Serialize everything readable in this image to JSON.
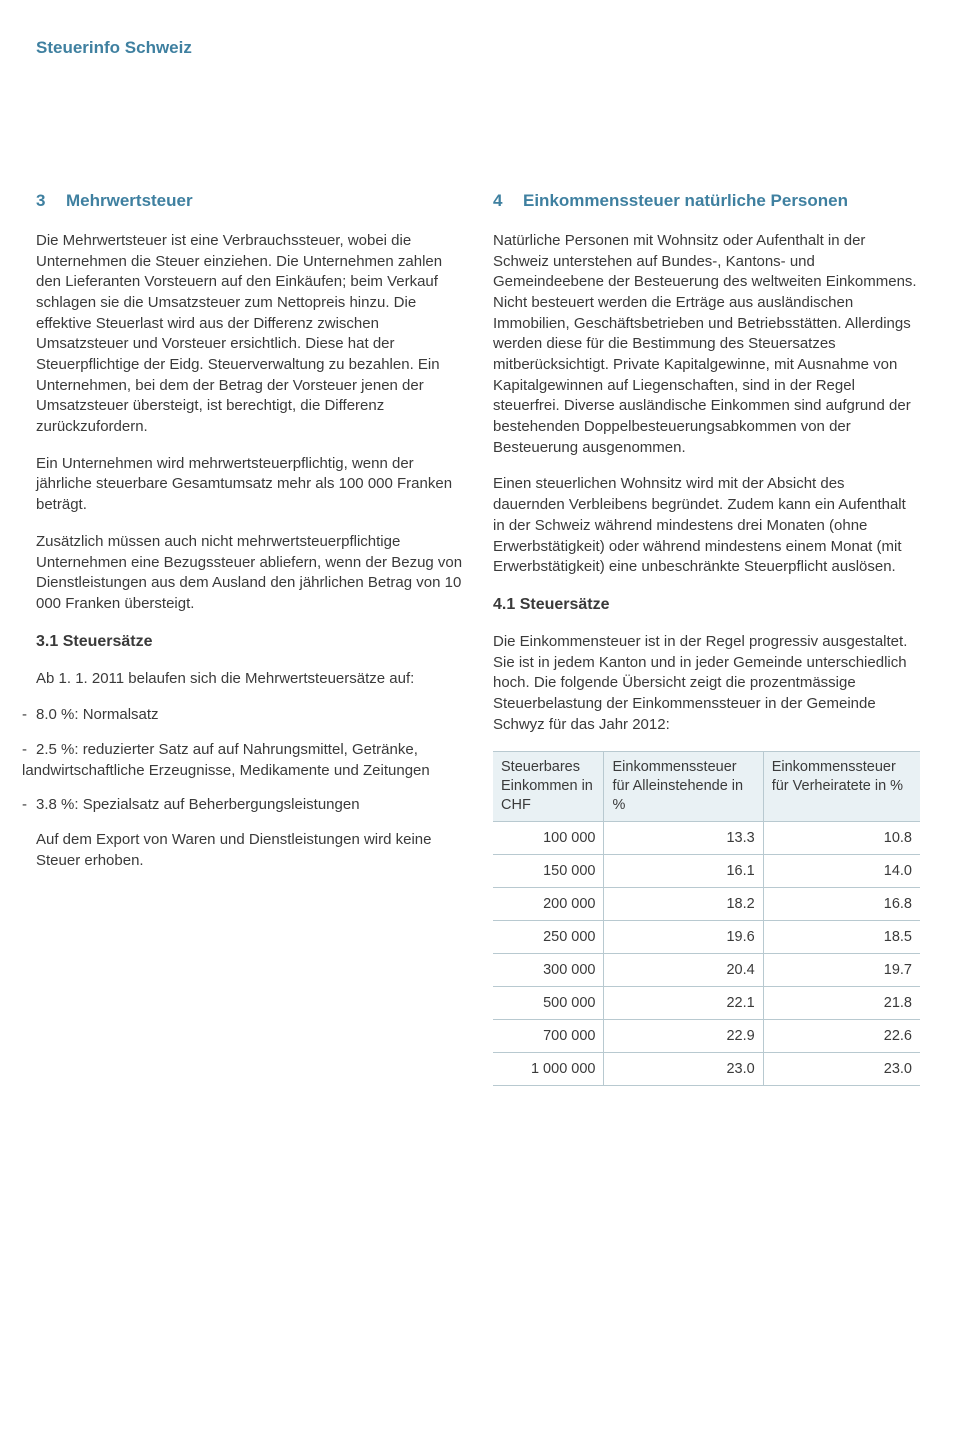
{
  "header": {
    "title": "Steuerinfo Schweiz"
  },
  "left": {
    "section_num": "3",
    "section_title": "Mehrwertsteuer",
    "p1": "Die Mehrwertsteuer ist eine Verbrauchssteuer, wobei die Unternehmen die Steuer einziehen. Die Unternehmen zahlen den Lieferanten Vorsteuern auf den Einkäufen; beim Verkauf schlagen sie die Umsatzsteuer zum Nettopreis hinzu. Die effektive Steuerlast wird aus der Differenz zwischen Umsatzsteuer und Vorsteuer ersichtlich. Diese hat der Steuerpflichtige der Eidg. Steuerverwaltung zu bezahlen. Ein Unternehmen, bei dem der Betrag der Vorsteuer jenen der Umsatzsteuer übersteigt, ist berechtigt, die Differenz zurückzufordern.",
    "p2": "Ein Unternehmen wird mehrwertsteuerpflichtig, wenn der jährliche steuerbare Gesamtumsatz mehr als 100 000 Franken beträgt.",
    "p3": "Zusätzlich müssen auch nicht mehrwertsteuerpflichtige Unternehmen eine Bezugssteuer abliefern, wenn der Bezug von Dienstleistungen aus dem Ausland den jährlichen Betrag von 10 000 Franken übersteigt.",
    "sub1": "3.1 Steuersätze",
    "p4": "Ab 1. 1. 2011 belaufen sich die Mehrwertsteuersätze auf:",
    "li1": "8.0 %: Normalsatz",
    "li2": "2.5 %: reduzierter Satz auf auf Nahrungsmittel, Getränke, landwirtschaftliche Erzeugnisse, Medikamente und Zeitungen",
    "li3": "3.8 %: Spezialsatz auf Beherbergungsleistungen",
    "p5": "Auf dem Export von Waren und Dienstleistungen wird keine Steuer erhoben."
  },
  "right": {
    "section_num": "4",
    "section_title": "Einkommenssteuer natürliche Personen",
    "p1": "Natürliche Personen mit Wohnsitz oder Aufenthalt in der Schweiz unterstehen auf Bundes-, Kantons- und Gemeindeebene der Besteuerung des weltweiten Einkommens. Nicht besteuert werden die Erträge aus ausländischen Immobilien, Geschäftsbetrieben und Betriebsstätten. Allerdings werden diese für die Bestimmung des Steuersatzes mitberücksichtigt. Private Kapitalgewinne, mit Ausnahme von Kapitalgewinnen auf Liegenschaften, sind in der Regel steuerfrei. Diverse ausländische Einkommen sind aufgrund der bestehenden Doppelbesteuerungsabkommen von der Besteuerung ausgenommen.",
    "p2": "Einen steuerlichen Wohnsitz wird mit der Absicht des dauernden Verbleibens begründet. Zudem kann ein Aufenthalt in der Schweiz während mindestens drei Monaten (ohne Erwerbstätigkeit) oder während mindestens einem Monat (mit Erwerbstätigkeit) eine unbeschränkte Steuerpflicht auslösen.",
    "sub1": "4.1 Steuersätze",
    "p3": "Die Einkommensteuer ist in der Regel progressiv ausgestaltet. Sie ist in jedem Kanton und in jeder Gemeinde unterschiedlich hoch. Die folgende Übersicht zeigt die prozentmässige Steuerbelastung der Einkommenssteuer in der Gemeinde Schwyz für das Jahr 2012:"
  },
  "table": {
    "headers": {
      "col1": "Steuerbares Einkommen in CHF",
      "col2": "Einkommenssteuer für Alleinstehende in %",
      "col3": "Einkommenssteuer für Verheiratete in %"
    },
    "rows": [
      {
        "income": "100 000",
        "single": "13.3",
        "married": "10.8"
      },
      {
        "income": "150 000",
        "single": "16.1",
        "married": "14.0"
      },
      {
        "income": "200 000",
        "single": "18.2",
        "married": "16.8"
      },
      {
        "income": "250 000",
        "single": "19.6",
        "married": "18.5"
      },
      {
        "income": "300 000",
        "single": "20.4",
        "married": "19.7"
      },
      {
        "income": "500 000",
        "single": "22.1",
        "married": "21.8"
      },
      {
        "income": "700 000",
        "single": "22.9",
        "married": "22.6"
      },
      {
        "income": "1 000 000",
        "single": "23.0",
        "married": "23.0"
      }
    ]
  }
}
